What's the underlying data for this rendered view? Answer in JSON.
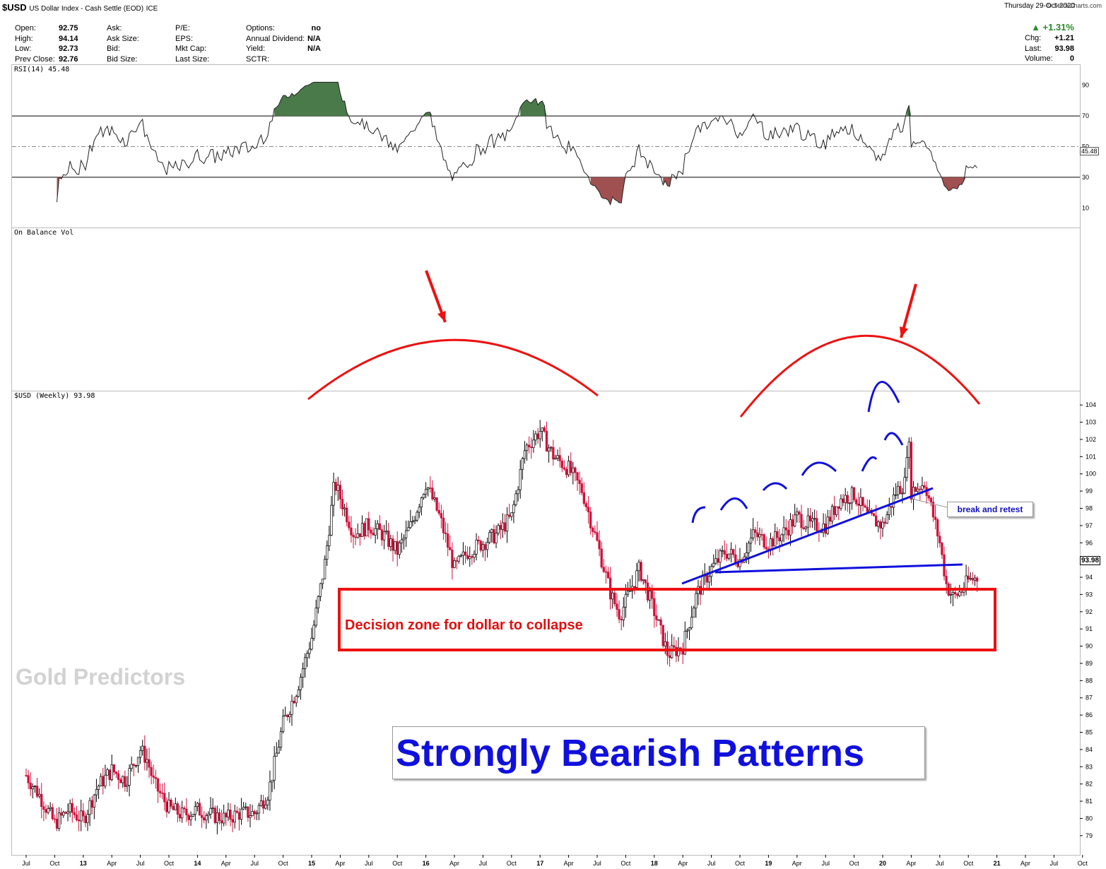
{
  "header": {
    "symbol": "$USD",
    "name": "US Dollar Index - Cash Settle (EOD)",
    "exchange": "ICE",
    "date": "Thursday   29-Oct-2020",
    "change_pct": "▲ +1.31%",
    "source": "© StockCharts.com",
    "quote": [
      {
        "label": "Open:",
        "value": "92.75"
      },
      {
        "label": "High:",
        "value": "94.14"
      },
      {
        "label": "Low:",
        "value": "92.73"
      },
      {
        "label": "Prev Close:",
        "value": "92.76"
      }
    ],
    "col2": [
      "Ask:",
      "Ask Size:",
      "Bid:",
      "Bid Size:"
    ],
    "col3": [
      "P/E:",
      "EPS:",
      "Mkt Cap:",
      "Last Size:"
    ],
    "col4": [
      {
        "label": "Options:",
        "value": "no"
      },
      {
        "label": "Annual Dividend:",
        "value": "N/A"
      },
      {
        "label": "Yield:",
        "value": "N/A"
      },
      {
        "label": "SCTR:",
        "value": ""
      }
    ],
    "right": [
      {
        "label": "Chg:",
        "value": "+1.21"
      },
      {
        "label": "Last:",
        "value": "93.98"
      },
      {
        "label": "Volume:",
        "value": "0"
      }
    ]
  },
  "panels": {
    "rsi_label": "RSI(14) 45.48",
    "rsi_value": "45.48",
    "obv_label": "On Balance Vol",
    "price_label": "$USD (Weekly) 93.98",
    "last_price": "93.98"
  },
  "annotations": {
    "decision_zone": "Decision zone for dollar to collapse",
    "break_retest": "break and retest",
    "bearish": "Strongly Bearish Patterns",
    "watermark": "Gold Predictors"
  },
  "colors": {
    "up": "#ffffff",
    "down": "#d0103a",
    "annotation_red": "#ee1111",
    "annotation_blue": "#1010dd",
    "rsi_fill": "#4a7a4a"
  },
  "chart_data": [
    {
      "type": "line",
      "title": "RSI(14) 45.48",
      "ylim": [
        0,
        100
      ],
      "y_ticks": [
        10,
        30,
        50,
        70,
        90
      ],
      "reference_lines": [
        30,
        50,
        70
      ],
      "series": [
        {
          "name": "RSI(14)",
          "last": 45.48
        }
      ]
    },
    {
      "type": "candlestick",
      "title": "$USD (Weekly) 93.98",
      "ylim": [
        78.5,
        104.5
      ],
      "y_ticks": [
        79,
        80,
        81,
        82,
        83,
        84,
        85,
        86,
        87,
        88,
        89,
        90,
        91,
        92,
        93,
        94,
        95,
        96,
        97,
        98,
        99,
        100,
        101,
        102,
        103,
        104
      ],
      "x_ticks": [
        "Jul",
        "Oct",
        "13",
        "Apr",
        "Jul",
        "Oct",
        "14",
        "Apr",
        "Jul",
        "Oct",
        "15",
        "Apr",
        "Jul",
        "Oct",
        "16",
        "Apr",
        "Jul",
        "Oct",
        "17",
        "Apr",
        "Jul",
        "Oct",
        "18",
        "Apr",
        "Jul",
        "Oct",
        "19",
        "Apr",
        "Jul",
        "Oct",
        "20",
        "Apr",
        "Jul",
        "Oct",
        "21",
        "Apr",
        "Jul",
        "Oct"
      ],
      "x_start": 2012.5,
      "x_step": 0.25,
      "series": [
        {
          "name": "$USD",
          "close_path": [
            {
              "t": 2012.5,
              "v": 82.5
            },
            {
              "t": 2012.62,
              "v": 81.3
            },
            {
              "t": 2012.75,
              "v": 79.7
            },
            {
              "t": 2012.87,
              "v": 80.5
            },
            {
              "t": 2013.0,
              "v": 79.9
            },
            {
              "t": 2013.12,
              "v": 81.8
            },
            {
              "t": 2013.25,
              "v": 82.8
            },
            {
              "t": 2013.37,
              "v": 82.2
            },
            {
              "t": 2013.5,
              "v": 84.0
            },
            {
              "t": 2013.56,
              "v": 83.4
            },
            {
              "t": 2013.62,
              "v": 82.0
            },
            {
              "t": 2013.75,
              "v": 80.6
            },
            {
              "t": 2013.87,
              "v": 80.2
            },
            {
              "t": 2014.0,
              "v": 80.5
            },
            {
              "t": 2014.12,
              "v": 80.2
            },
            {
              "t": 2014.25,
              "v": 80.0
            },
            {
              "t": 2014.37,
              "v": 80.3
            },
            {
              "t": 2014.5,
              "v": 80.3
            },
            {
              "t": 2014.62,
              "v": 81.5
            },
            {
              "t": 2014.75,
              "v": 85.5
            },
            {
              "t": 2014.87,
              "v": 87.5
            },
            {
              "t": 2015.0,
              "v": 90.5
            },
            {
              "t": 2015.12,
              "v": 95.0
            },
            {
              "t": 2015.2,
              "v": 99.5
            },
            {
              "t": 2015.37,
              "v": 96.5
            },
            {
              "t": 2015.5,
              "v": 97.0
            },
            {
              "t": 2015.62,
              "v": 96.5
            },
            {
              "t": 2015.75,
              "v": 95.5
            },
            {
              "t": 2015.87,
              "v": 97.0
            },
            {
              "t": 2016.0,
              "v": 99.5
            },
            {
              "t": 2016.12,
              "v": 97.5
            },
            {
              "t": 2016.25,
              "v": 94.5
            },
            {
              "t": 2016.37,
              "v": 95.5
            },
            {
              "t": 2016.5,
              "v": 96.0
            },
            {
              "t": 2016.62,
              "v": 96.5
            },
            {
              "t": 2016.75,
              "v": 97.5
            },
            {
              "t": 2016.87,
              "v": 101.5
            },
            {
              "t": 2017.0,
              "v": 102.5
            },
            {
              "t": 2017.12,
              "v": 101.0
            },
            {
              "t": 2017.25,
              "v": 100.3
            },
            {
              "t": 2017.37,
              "v": 99.0
            },
            {
              "t": 2017.5,
              "v": 96.0
            },
            {
              "t": 2017.62,
              "v": 93.0
            },
            {
              "t": 2017.7,
              "v": 91.8
            },
            {
              "t": 2017.87,
              "v": 94.5
            },
            {
              "t": 2018.0,
              "v": 92.0
            },
            {
              "t": 2018.12,
              "v": 89.5
            },
            {
              "t": 2018.25,
              "v": 90.0
            },
            {
              "t": 2018.37,
              "v": 93.0
            },
            {
              "t": 2018.5,
              "v": 94.5
            },
            {
              "t": 2018.62,
              "v": 95.5
            },
            {
              "t": 2018.75,
              "v": 95.0
            },
            {
              "t": 2018.87,
              "v": 96.5
            },
            {
              "t": 2019.0,
              "v": 96.0
            },
            {
              "t": 2019.12,
              "v": 96.5
            },
            {
              "t": 2019.25,
              "v": 97.5
            },
            {
              "t": 2019.37,
              "v": 97.0
            },
            {
              "t": 2019.5,
              "v": 97.0
            },
            {
              "t": 2019.62,
              "v": 98.5
            },
            {
              "t": 2019.75,
              "v": 98.8
            },
            {
              "t": 2019.87,
              "v": 97.5
            },
            {
              "t": 2020.0,
              "v": 97.0
            },
            {
              "t": 2020.12,
              "v": 99.0
            },
            {
              "t": 2020.2,
              "v": 99.5
            },
            {
              "t": 2020.22,
              "v": 102.8
            },
            {
              "t": 2020.25,
              "v": 99.0
            },
            {
              "t": 2020.37,
              "v": 99.5
            },
            {
              "t": 2020.5,
              "v": 96.0
            },
            {
              "t": 2020.56,
              "v": 93.5
            },
            {
              "t": 2020.62,
              "v": 92.8
            },
            {
              "t": 2020.7,
              "v": 93.3
            },
            {
              "t": 2020.75,
              "v": 93.8
            },
            {
              "t": 2020.83,
              "v": 93.98
            }
          ]
        }
      ]
    }
  ]
}
